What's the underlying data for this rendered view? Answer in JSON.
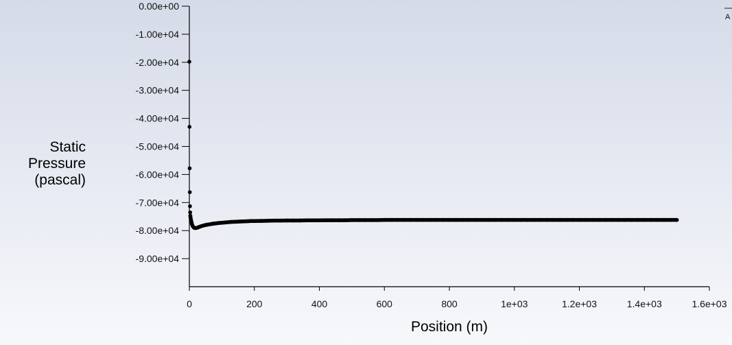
{
  "chart_data": {
    "type": "scatter",
    "title": "",
    "xlabel": "Position (m)",
    "ylabel_lines": [
      "Static",
      "Pressure",
      "(pascal)"
    ],
    "xlim": [
      0,
      1600
    ],
    "ylim": [
      -100000,
      0
    ],
    "x_ticks": [
      {
        "value": 0,
        "label": "0"
      },
      {
        "value": 200,
        "label": "200"
      },
      {
        "value": 400,
        "label": "400"
      },
      {
        "value": 600,
        "label": "600"
      },
      {
        "value": 800,
        "label": "800"
      },
      {
        "value": 1000,
        "label": "1e+03"
      },
      {
        "value": 1200,
        "label": "1.2e+03"
      },
      {
        "value": 1400,
        "label": "1.4e+03"
      },
      {
        "value": 1600,
        "label": "1.6e+03"
      }
    ],
    "y_ticks": [
      {
        "value": 0,
        "label": "0.00e+00"
      },
      {
        "value": -10000,
        "label": "-1.00e+04"
      },
      {
        "value": -20000,
        "label": "-2.00e+04"
      },
      {
        "value": -30000,
        "label": "-3.00e+04"
      },
      {
        "value": -40000,
        "label": "-4.00e+04"
      },
      {
        "value": -50000,
        "label": "-5.00e+04"
      },
      {
        "value": -60000,
        "label": "-6.00e+04"
      },
      {
        "value": -70000,
        "label": "-7.00e+04"
      },
      {
        "value": -80000,
        "label": "-8.00e+04"
      },
      {
        "value": -90000,
        "label": "-9.00e+04"
      }
    ],
    "grid": false,
    "legend_placement": "top-right",
    "legend_text": "A",
    "marker_color": "#000000",
    "series": [
      {
        "points": [
          [
            0,
            -19800
          ],
          [
            0.5,
            -43000
          ],
          [
            1,
            -57800
          ],
          [
            1.5,
            -66300
          ],
          [
            2,
            -71300
          ],
          [
            2.5,
            -73500
          ],
          [
            3,
            -74700
          ],
          [
            4,
            -75600
          ],
          [
            6,
            -76700
          ],
          [
            8,
            -77700
          ],
          [
            10,
            -78300
          ],
          [
            12,
            -78700
          ],
          [
            15,
            -79000
          ],
          [
            18,
            -79100
          ],
          [
            22,
            -79050
          ],
          [
            26,
            -78900
          ],
          [
            30,
            -78700
          ],
          [
            35,
            -78500
          ],
          [
            40,
            -78300
          ],
          [
            45,
            -78150
          ],
          [
            50,
            -78000
          ],
          [
            55,
            -77900
          ],
          [
            60,
            -77800
          ],
          [
            65,
            -77700
          ],
          [
            70,
            -77600
          ],
          [
            75,
            -77500
          ],
          [
            80,
            -77450
          ],
          [
            90,
            -77300
          ],
          [
            100,
            -77200
          ],
          [
            110,
            -77100
          ],
          [
            120,
            -77000
          ],
          [
            130,
            -76900
          ],
          [
            140,
            -76850
          ],
          [
            150,
            -76800
          ],
          [
            160,
            -76750
          ],
          [
            170,
            -76700
          ],
          [
            180,
            -76650
          ],
          [
            190,
            -76600
          ],
          [
            200,
            -76600
          ],
          [
            220,
            -76550
          ],
          [
            240,
            -76500
          ],
          [
            260,
            -76450
          ],
          [
            280,
            -76450
          ],
          [
            300,
            -76400
          ],
          [
            320,
            -76400
          ],
          [
            340,
            -76400
          ],
          [
            360,
            -76350
          ],
          [
            380,
            -76350
          ],
          [
            400,
            -76350
          ],
          [
            420,
            -76300
          ],
          [
            440,
            -76300
          ],
          [
            460,
            -76300
          ],
          [
            480,
            -76300
          ],
          [
            500,
            -76250
          ],
          [
            520,
            -76250
          ],
          [
            540,
            -76250
          ],
          [
            560,
            -76250
          ],
          [
            580,
            -76250
          ],
          [
            600,
            -76200
          ],
          [
            620,
            -76200
          ],
          [
            640,
            -76200
          ],
          [
            660,
            -76200
          ],
          [
            680,
            -76200
          ],
          [
            700,
            -76200
          ],
          [
            720,
            -76200
          ],
          [
            740,
            -76200
          ],
          [
            760,
            -76200
          ],
          [
            780,
            -76200
          ],
          [
            800,
            -76200
          ],
          [
            820,
            -76200
          ],
          [
            840,
            -76200
          ],
          [
            860,
            -76200
          ],
          [
            880,
            -76200
          ],
          [
            900,
            -76200
          ],
          [
            920,
            -76200
          ],
          [
            940,
            -76200
          ],
          [
            960,
            -76200
          ],
          [
            980,
            -76200
          ],
          [
            1000,
            -76200
          ],
          [
            1020,
            -76200
          ],
          [
            1040,
            -76200
          ],
          [
            1060,
            -76200
          ],
          [
            1080,
            -76200
          ],
          [
            1100,
            -76200
          ],
          [
            1120,
            -76200
          ],
          [
            1140,
            -76200
          ],
          [
            1160,
            -76200
          ],
          [
            1180,
            -76200
          ],
          [
            1200,
            -76200
          ],
          [
            1220,
            -76200
          ],
          [
            1240,
            -76200
          ],
          [
            1260,
            -76200
          ],
          [
            1280,
            -76200
          ],
          [
            1300,
            -76200
          ],
          [
            1320,
            -76200
          ],
          [
            1340,
            -76200
          ],
          [
            1360,
            -76200
          ],
          [
            1380,
            -76200
          ],
          [
            1400,
            -76200
          ],
          [
            1420,
            -76200
          ],
          [
            1440,
            -76200
          ],
          [
            1460,
            -76200
          ],
          [
            1480,
            -76200
          ],
          [
            1500,
            -76200
          ]
        ]
      }
    ]
  }
}
